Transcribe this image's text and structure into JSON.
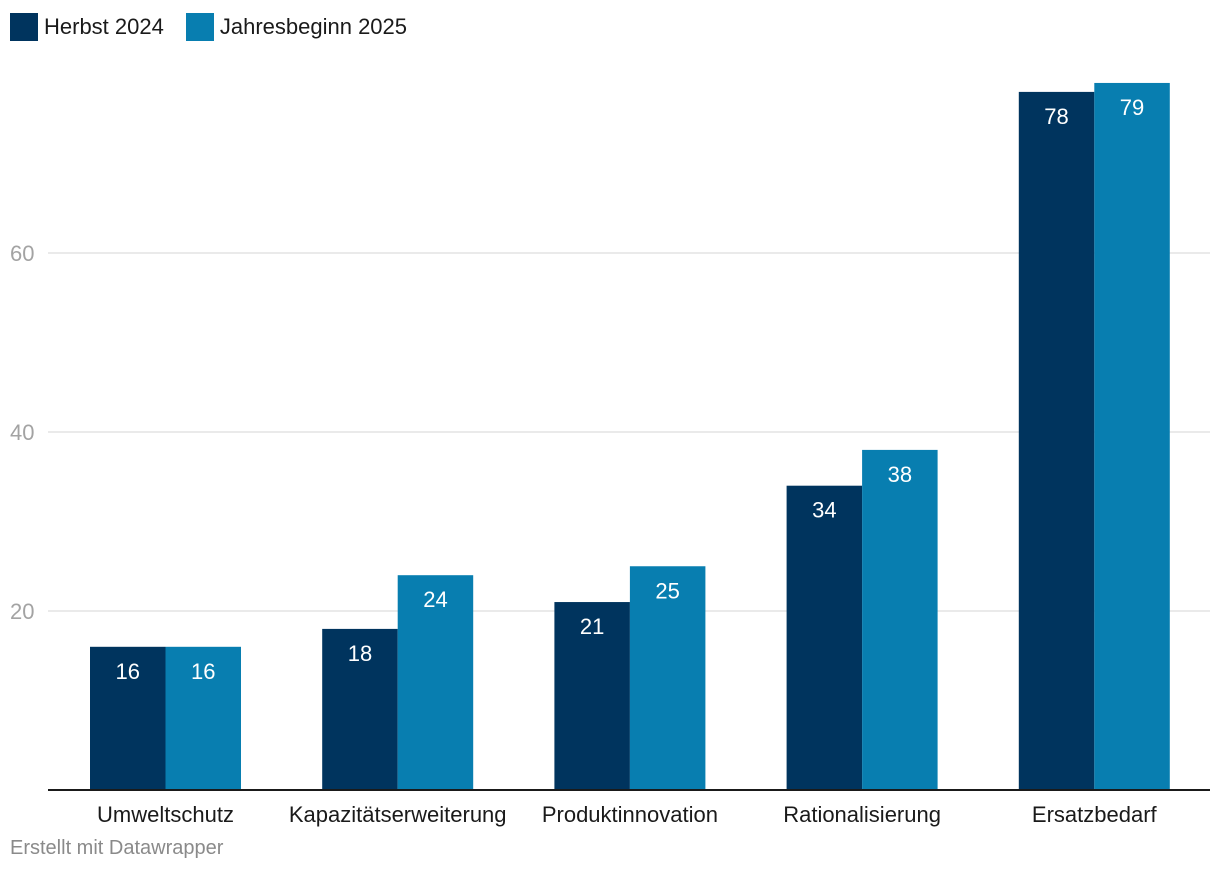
{
  "legend": [
    {
      "label": "Herbst 2024",
      "color": "#00345e"
    },
    {
      "label": "Jahresbeginn 2025",
      "color": "#087eb0"
    }
  ],
  "chart_data": {
    "type": "bar",
    "categories": [
      "Umweltschutz",
      "Kapazitätserweiterung",
      "Produktinnovation",
      "Rationalisierung",
      "Ersatzbedarf"
    ],
    "series": [
      {
        "name": "Herbst 2024",
        "values": [
          16,
          18,
          21,
          34,
          78
        ],
        "color": "#00345e"
      },
      {
        "name": "Jahresbeginn 2025",
        "values": [
          16,
          24,
          25,
          38,
          79
        ],
        "color": "#087eb0"
      }
    ],
    "title": "",
    "xlabel": "",
    "ylabel": "",
    "ylim": [
      0,
      80
    ],
    "yticks": [
      20,
      40,
      60
    ],
    "grid": true,
    "legend_position": "top-left"
  },
  "footer": {
    "credit": "Erstellt mit Datawrapper"
  }
}
